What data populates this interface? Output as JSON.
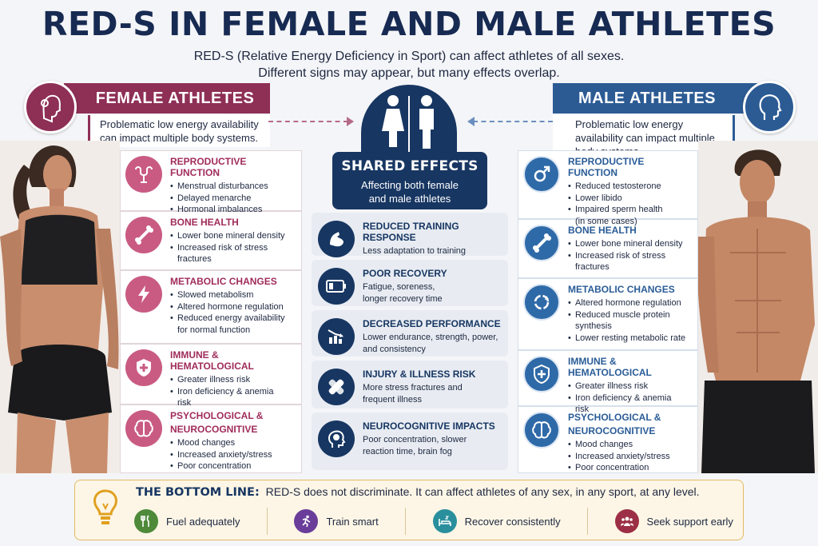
{
  "title": "RED-S IN FEMALE AND MALE ATHLETES",
  "subtitle": {
    "line1": "RED-S (Relative Energy Deficiency in Sport) can affect athletes of all sexes.",
    "line2": "Different signs may appear, but many effects overlap."
  },
  "female": {
    "banner": "FEMALE ATHLETES",
    "intro": "Problematic low energy availability can impact multiple body systems.",
    "cards": [
      {
        "title": "REPRODUCTIVE FUNCTION",
        "items": [
          "Menstrual disturbances",
          "Delayed menarche",
          "Hormonal imbalances"
        ]
      },
      {
        "title": "BONE HEALTH",
        "items": [
          "Lower bone mineral density",
          "Increased risk of stress",
          "fractures"
        ]
      },
      {
        "title": "METABOLIC CHANGES",
        "items": [
          "Slowed metabolism",
          "Altered hormone regulation",
          "Reduced energy availability",
          "for normal function"
        ]
      },
      {
        "title": "IMMUNE & HEMATOLOGICAL",
        "items": [
          "Greater illness risk",
          "Iron deficiency & anemia",
          "risk"
        ]
      },
      {
        "title": "PSYCHOLOGICAL &",
        "title2": "NEUROCOGNITIVE",
        "items": [
          "Mood changes",
          "Increased anxiety/stress",
          "Poor concentration"
        ]
      }
    ]
  },
  "male": {
    "banner": "MALE ATHLETES",
    "intro": "Problematic low energy availability can impact multiple body systems.",
    "cards": [
      {
        "title": "REPRODUCTIVE FUNCTION",
        "items": [
          "Reduced testosterone",
          "Lower libido",
          "Impaired sperm health",
          "(in some cases)"
        ]
      },
      {
        "title": "BONE HEALTH",
        "items": [
          "Lower bone mineral density",
          "Increased risk of stress",
          "fractures"
        ]
      },
      {
        "title": "METABOLIC CHANGES",
        "items": [
          "Altered hormone regulation",
          "Reduced muscle protein",
          "synthesis",
          "Lower resting metabolic rate"
        ]
      },
      {
        "title": "IMMUNE & HEMATOLOGICAL",
        "items": [
          "Greater illness risk",
          "Iron deficiency & anemia",
          "risk"
        ]
      },
      {
        "title": "PSYCHOLOGICAL &",
        "title2": "NEUROCOGNITIVE",
        "items": [
          "Mood changes",
          "Increased anxiety/stress",
          "Poor concentration"
        ]
      }
    ]
  },
  "shared": {
    "title": "SHARED EFFECTS",
    "subtitle": "Affecting both female and male athletes",
    "cards": [
      {
        "title": "REDUCED TRAINING RESPONSE",
        "text": "Less adaptation to training"
      },
      {
        "title": "POOR RECOVERY",
        "text": "Fatigue, soreness, longer recovery time"
      },
      {
        "title": "DECREASED PERFORMANCE",
        "text": "Lower endurance, strength, power, and consistency"
      },
      {
        "title": "INJURY & ILLNESS RISK",
        "text": "More stress fractures and frequent illness"
      },
      {
        "title": "NEUROCOGNITIVE IMPACTS",
        "text": "Poor concentration, slower reaction time, brain fog"
      }
    ]
  },
  "bottom": {
    "label": "THE BOTTOM LINE:",
    "text": "RED-S does not discriminate. It can affect athletes of any sex, in any sport, at any level.",
    "tips": [
      "Fuel adequately",
      "Train smart",
      "Recover consistently",
      "Seek support early"
    ]
  },
  "colors": {
    "female": "#8e2f56",
    "male": "#2c5b94",
    "shared": "#173662",
    "tip_fuel": "#4e8a3a",
    "tip_train": "#6a3d9a",
    "tip_recover": "#2a8f9c",
    "tip_support": "#9c2f45"
  },
  "icons": {
    "female_head": "female-profile-icon",
    "male_head": "male-profile-icon",
    "shared": "restroom-icon",
    "bottom": "lightbulb-icon"
  }
}
